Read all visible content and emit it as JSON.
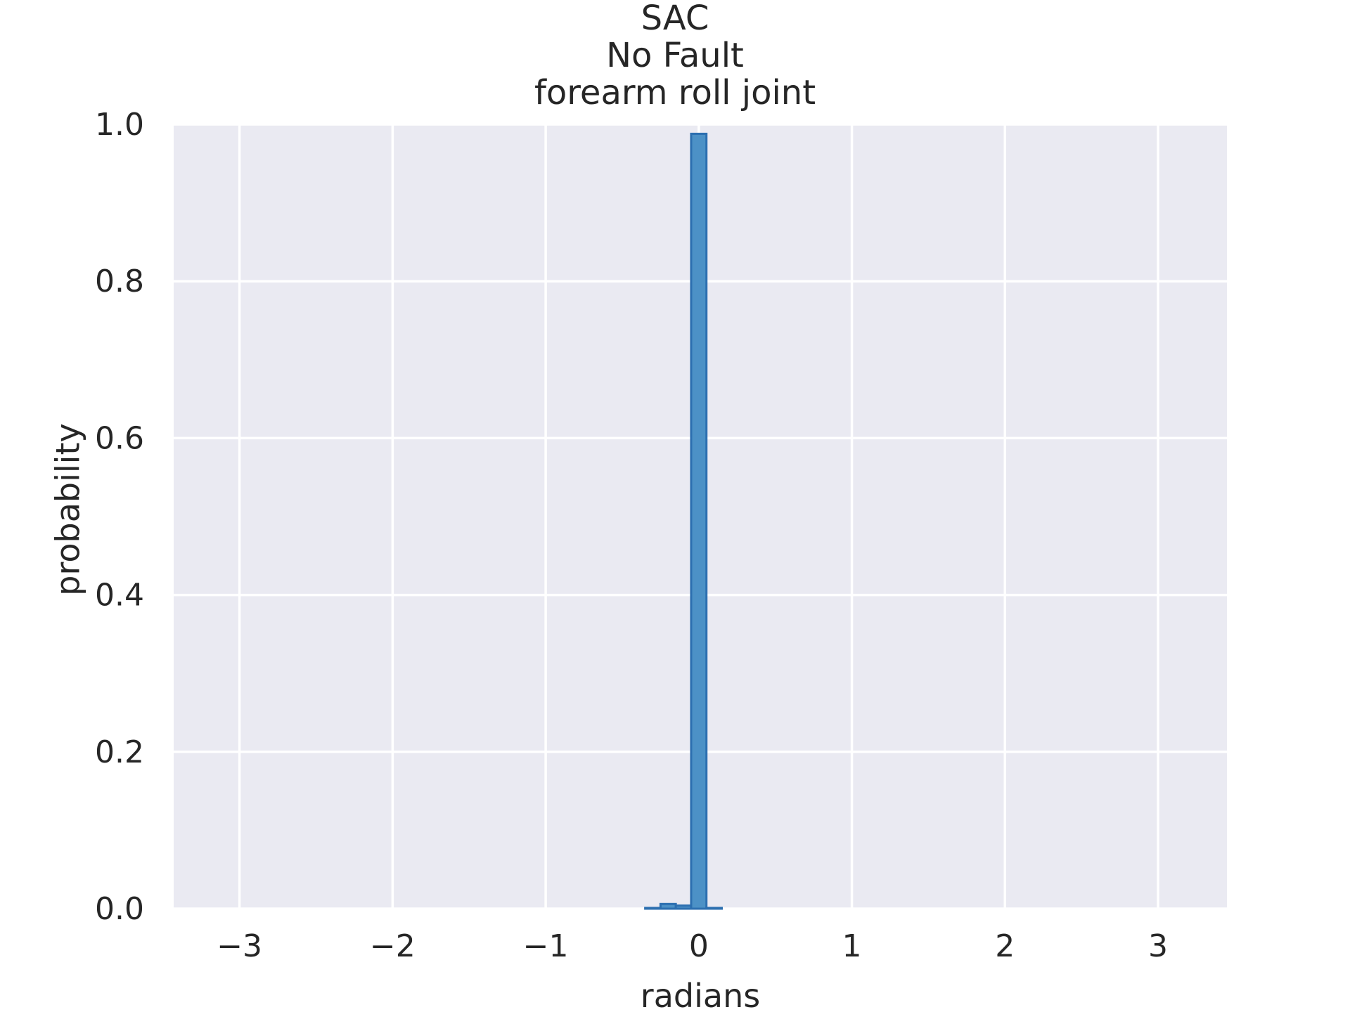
{
  "chart_data": {
    "type": "bar",
    "title_lines": [
      "SAC",
      "No Fault",
      "forearm roll joint"
    ],
    "xlabel": "radians",
    "ylabel": "probability",
    "xlim": [
      -3.43,
      3.45
    ],
    "ylim": [
      0.0,
      1.0
    ],
    "x_ticks": [
      -3,
      -2,
      -1,
      0,
      1,
      2,
      3
    ],
    "x_tick_labels": [
      "−3",
      "−2",
      "−1",
      "0",
      "1",
      "2",
      "3"
    ],
    "y_ticks": [
      0.0,
      0.2,
      0.4,
      0.6,
      0.8,
      1.0
    ],
    "y_tick_labels": [
      "0.0",
      "0.2",
      "0.4",
      "0.6",
      "0.8",
      "1.0"
    ],
    "grid": true,
    "bar_color": "#4c91c6",
    "bar_edge_color": "#2c6fb0",
    "plot_background": "#eaeaf2",
    "grid_color": "#ffffff",
    "bins": [
      {
        "x0": -0.35,
        "x1": -0.25,
        "value": 0.001
      },
      {
        "x0": -0.25,
        "x1": -0.15,
        "value": 0.006
      },
      {
        "x0": -0.15,
        "x1": -0.05,
        "value": 0.004
      },
      {
        "x0": -0.05,
        "x1": 0.05,
        "value": 0.988
      },
      {
        "x0": 0.05,
        "x1": 0.15,
        "value": 0.001
      }
    ]
  }
}
